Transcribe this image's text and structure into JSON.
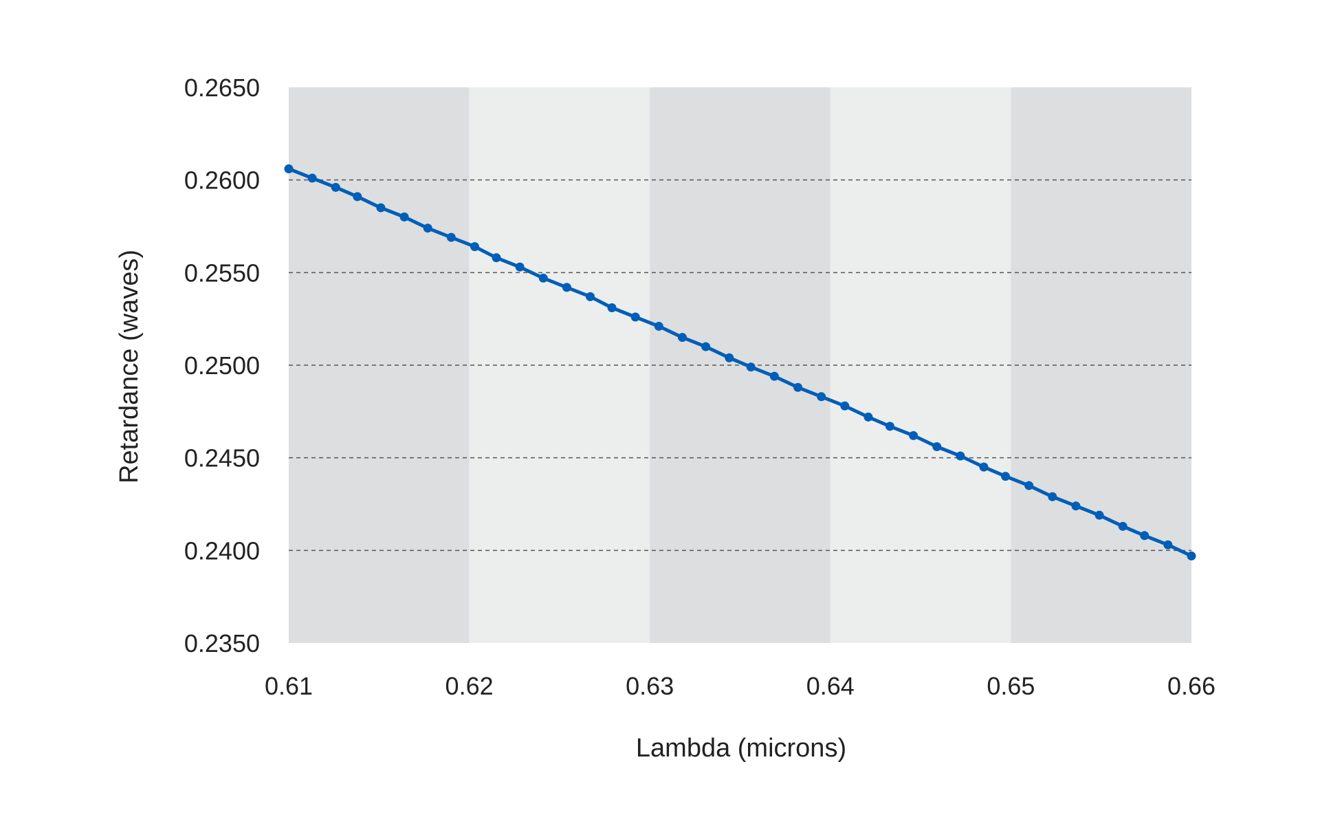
{
  "chart_data": {
    "type": "line",
    "title": "",
    "xlabel": "Lambda (microns)",
    "ylabel": "Retardance (waves)",
    "xlim": [
      0.61,
      0.66
    ],
    "ylim": [
      0.235,
      0.265
    ],
    "x_ticks": [
      {
        "value": 0.61,
        "label": "0.61"
      },
      {
        "value": 0.62,
        "label": "0.62"
      },
      {
        "value": 0.63,
        "label": "0.63"
      },
      {
        "value": 0.64,
        "label": "0.64"
      },
      {
        "value": 0.65,
        "label": "0.65"
      },
      {
        "value": 0.66,
        "label": "0.66"
      }
    ],
    "y_ticks": [
      {
        "value": 0.235,
        "label": "0.2350"
      },
      {
        "value": 0.24,
        "label": "0.2400"
      },
      {
        "value": 0.245,
        "label": "0.2450"
      },
      {
        "value": 0.25,
        "label": "0.2500"
      },
      {
        "value": 0.255,
        "label": "0.2550"
      },
      {
        "value": 0.26,
        "label": "0.2600"
      },
      {
        "value": 0.265,
        "label": "0.2650"
      }
    ],
    "grid": "horizontal dashed",
    "background_bands": "alternating vertical bands between x ticks",
    "colors": {
      "line": "#005eb8",
      "band_dark": "#dcdee0",
      "band_light": "#eceeee",
      "grid": "#555555"
    },
    "series": [
      {
        "x": [
          0.61,
          0.6113,
          0.6126,
          0.6138,
          0.6151,
          0.6164,
          0.6177,
          0.619,
          0.6203,
          0.6215,
          0.6228,
          0.6241,
          0.6254,
          0.6267,
          0.6279,
          0.6292,
          0.6305,
          0.6318,
          0.6331,
          0.6344,
          0.6356,
          0.6369,
          0.6382,
          0.6395,
          0.6408,
          0.6421,
          0.6433,
          0.6446,
          0.6459,
          0.6472,
          0.6485,
          0.6497,
          0.651,
          0.6523,
          0.6536,
          0.6549,
          0.6562,
          0.6574,
          0.6587,
          0.66
        ],
        "y": [
          0.2606,
          0.2601,
          0.2596,
          0.2591,
          0.2585,
          0.258,
          0.2574,
          0.2569,
          0.2564,
          0.2558,
          0.2553,
          0.2547,
          0.2542,
          0.2537,
          0.2531,
          0.2526,
          0.2521,
          0.2515,
          0.251,
          0.2504,
          0.2499,
          0.2494,
          0.2488,
          0.2483,
          0.2478,
          0.2472,
          0.2467,
          0.2462,
          0.2456,
          0.2451,
          0.2445,
          0.244,
          0.2435,
          0.2429,
          0.2424,
          0.2419,
          0.2413,
          0.2408,
          0.2403,
          0.2397
        ]
      }
    ]
  }
}
